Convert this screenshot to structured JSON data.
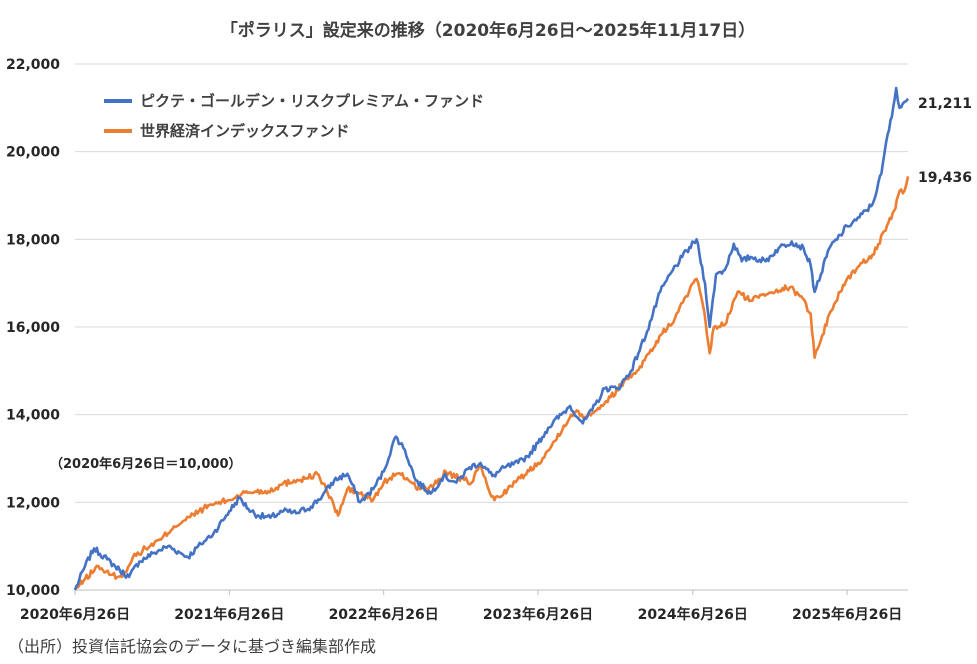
{
  "title": "「ポラリス」設定来の推移（2020年6月26日～2025年11月17日）",
  "base_note": "（2020年6月26日＝10,000）",
  "source": "（出所）投資信託協会のデータに基づき編集部作成",
  "chart_data": {
    "type": "line",
    "xlim": [
      "2020-06-26",
      "2025-11-17"
    ],
    "ylim": [
      10000,
      22000
    ],
    "grid": true,
    "legend_position": "top-left",
    "x_ticks": [
      "2020年6月26日",
      "2021年6月26日",
      "2022年6月26日",
      "2023年6月26日",
      "2024年6月26日",
      "2025年6月26日"
    ],
    "y_ticks": [
      "10,000",
      "12,000",
      "14,000",
      "16,000",
      "18,000",
      "20,000",
      "22,000"
    ],
    "series": [
      {
        "name": "ピクテ・ゴールデン・リスクプレミアム・ファンド",
        "color": "#4472C4",
        "end_label": "21,211",
        "points": [
          [
            "2020-06-26",
            10000
          ],
          [
            "2020-07-20",
            10550
          ],
          [
            "2020-08-10",
            10950
          ],
          [
            "2020-09-10",
            10700
          ],
          [
            "2020-10-10",
            10450
          ],
          [
            "2020-11-01",
            10300
          ],
          [
            "2020-11-25",
            10650
          ],
          [
            "2020-12-31",
            10850
          ],
          [
            "2021-02-01",
            11000
          ],
          [
            "2021-03-01",
            10850
          ],
          [
            "2021-03-20",
            10750
          ],
          [
            "2021-04-20",
            11050
          ],
          [
            "2021-05-20",
            11300
          ],
          [
            "2021-06-26",
            11800
          ],
          [
            "2021-07-20",
            12100
          ],
          [
            "2021-08-10",
            11850
          ],
          [
            "2021-09-01",
            11700
          ],
          [
            "2021-10-01",
            11650
          ],
          [
            "2021-11-01",
            11800
          ],
          [
            "2021-12-01",
            11750
          ],
          [
            "2022-01-05",
            11900
          ],
          [
            "2022-02-01",
            12150
          ],
          [
            "2022-03-01",
            12500
          ],
          [
            "2022-04-01",
            12650
          ],
          [
            "2022-05-01",
            12000
          ],
          [
            "2022-06-01",
            12300
          ],
          [
            "2022-06-26",
            12700
          ],
          [
            "2022-07-15",
            13250
          ],
          [
            "2022-07-25",
            13500
          ],
          [
            "2022-08-15",
            13200
          ],
          [
            "2022-09-10",
            12500
          ],
          [
            "2022-10-15",
            12200
          ],
          [
            "2022-11-15",
            12600
          ],
          [
            "2022-12-15",
            12450
          ],
          [
            "2023-01-15",
            12800
          ],
          [
            "2023-02-10",
            12900
          ],
          [
            "2023-03-10",
            12600
          ],
          [
            "2023-04-10",
            12800
          ],
          [
            "2023-05-10",
            12900
          ],
          [
            "2023-06-01",
            13050
          ],
          [
            "2023-06-26",
            13350
          ],
          [
            "2023-07-20",
            13700
          ],
          [
            "2023-08-20",
            14000
          ],
          [
            "2023-09-10",
            14200
          ],
          [
            "2023-10-10",
            13800
          ],
          [
            "2023-11-01",
            14100
          ],
          [
            "2023-12-01",
            14600
          ],
          [
            "2024-01-01",
            14600
          ],
          [
            "2024-02-01",
            15000
          ],
          [
            "2024-03-10",
            15900
          ],
          [
            "2024-04-10",
            16800
          ],
          [
            "2024-05-10",
            17300
          ],
          [
            "2024-06-01",
            17600
          ],
          [
            "2024-07-05",
            18000
          ],
          [
            "2024-07-25",
            17000
          ],
          [
            "2024-08-05",
            16000
          ],
          [
            "2024-08-20",
            17200
          ],
          [
            "2024-09-10",
            17300
          ],
          [
            "2024-10-01",
            17900
          ],
          [
            "2024-10-20",
            17500
          ],
          [
            "2024-11-10",
            17600
          ],
          [
            "2024-12-15",
            17500
          ],
          [
            "2025-01-15",
            17800
          ],
          [
            "2025-02-15",
            17950
          ],
          [
            "2025-03-15",
            17800
          ],
          [
            "2025-04-01",
            17400
          ],
          [
            "2025-04-10",
            16800
          ],
          [
            "2025-04-25",
            17200
          ],
          [
            "2025-05-15",
            17800
          ],
          [
            "2025-06-10",
            18100
          ],
          [
            "2025-06-26",
            18300
          ],
          [
            "2025-07-25",
            18500
          ],
          [
            "2025-08-25",
            18800
          ],
          [
            "2025-09-15",
            19500
          ],
          [
            "2025-09-30",
            20400
          ],
          [
            "2025-10-10",
            20800
          ],
          [
            "2025-10-20",
            21450
          ],
          [
            "2025-10-28",
            21000
          ],
          [
            "2025-11-05",
            21100
          ],
          [
            "2025-11-17",
            21211
          ]
        ]
      },
      {
        "name": "世界経済インデックスファンド",
        "color": "#ED7D31",
        "end_label": "19,436",
        "points": [
          [
            "2020-06-26",
            10000
          ],
          [
            "2020-07-20",
            10250
          ],
          [
            "2020-08-20",
            10550
          ],
          [
            "2020-09-15",
            10350
          ],
          [
            "2020-10-15",
            10300
          ],
          [
            "2020-11-10",
            10750
          ],
          [
            "2020-12-10",
            10950
          ],
          [
            "2021-01-15",
            11150
          ],
          [
            "2021-02-15",
            11450
          ],
          [
            "2021-03-15",
            11600
          ],
          [
            "2021-04-15",
            11800
          ],
          [
            "2021-05-15",
            11950
          ],
          [
            "2021-06-26",
            12050
          ],
          [
            "2021-07-26",
            12200
          ],
          [
            "2021-08-26",
            12250
          ],
          [
            "2021-09-26",
            12250
          ],
          [
            "2021-10-26",
            12400
          ],
          [
            "2021-11-26",
            12500
          ],
          [
            "2021-12-26",
            12550
          ],
          [
            "2022-01-20",
            12650
          ],
          [
            "2022-02-10",
            12300
          ],
          [
            "2022-03-01",
            11900
          ],
          [
            "2022-03-10",
            11700
          ],
          [
            "2022-04-01",
            12300
          ],
          [
            "2022-05-01",
            12200
          ],
          [
            "2022-06-01",
            12050
          ],
          [
            "2022-06-26",
            12450
          ],
          [
            "2022-07-26",
            12650
          ],
          [
            "2022-08-20",
            12550
          ],
          [
            "2022-09-20",
            12300
          ],
          [
            "2022-10-20",
            12350
          ],
          [
            "2022-11-20",
            12700
          ],
          [
            "2022-12-20",
            12550
          ],
          [
            "2023-01-20",
            12450
          ],
          [
            "2023-02-10",
            12850
          ],
          [
            "2023-03-01",
            12300
          ],
          [
            "2023-03-15",
            12050
          ],
          [
            "2023-04-15",
            12300
          ],
          [
            "2023-05-15",
            12550
          ],
          [
            "2023-06-26",
            12900
          ],
          [
            "2023-07-26",
            13250
          ],
          [
            "2023-08-26",
            13750
          ],
          [
            "2023-09-26",
            14100
          ],
          [
            "2023-10-15",
            13950
          ],
          [
            "2023-11-15",
            14150
          ],
          [
            "2023-12-15",
            14400
          ],
          [
            "2024-01-15",
            14750
          ],
          [
            "2024-02-15",
            15000
          ],
          [
            "2024-03-15",
            15400
          ],
          [
            "2024-04-15",
            15850
          ],
          [
            "2024-05-15",
            16200
          ],
          [
            "2024-06-10",
            16700
          ],
          [
            "2024-07-05",
            17100
          ],
          [
            "2024-07-20",
            16500
          ],
          [
            "2024-08-05",
            15400
          ],
          [
            "2024-08-15",
            16000
          ],
          [
            "2024-09-10",
            16050
          ],
          [
            "2024-10-10",
            16800
          ],
          [
            "2024-11-10",
            16600
          ],
          [
            "2024-12-10",
            16750
          ],
          [
            "2025-01-10",
            16850
          ],
          [
            "2025-02-10",
            16900
          ],
          [
            "2025-03-10",
            16700
          ],
          [
            "2025-04-01",
            16300
          ],
          [
            "2025-04-10",
            15300
          ],
          [
            "2025-04-25",
            15700
          ],
          [
            "2025-05-15",
            16300
          ],
          [
            "2025-06-10",
            16800
          ],
          [
            "2025-06-26",
            17100
          ],
          [
            "2025-07-25",
            17400
          ],
          [
            "2025-08-25",
            17650
          ],
          [
            "2025-09-25",
            18200
          ],
          [
            "2025-10-15",
            18650
          ],
          [
            "2025-10-28",
            19100
          ],
          [
            "2025-11-05",
            19050
          ],
          [
            "2025-11-17",
            19436
          ]
        ]
      }
    ]
  }
}
